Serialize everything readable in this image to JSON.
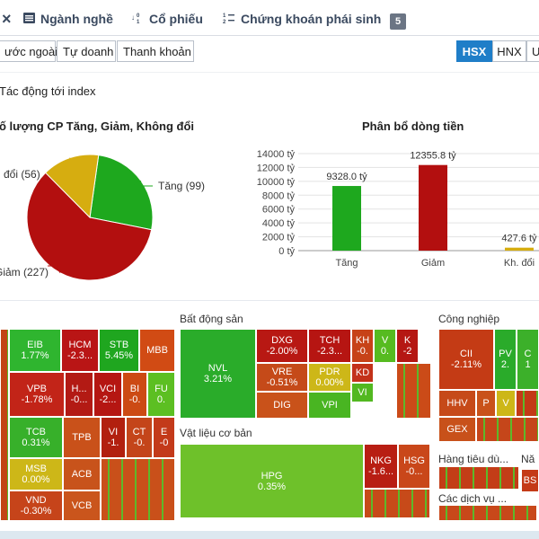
{
  "tabs": [
    {
      "label": "Ngành nghề",
      "icon": "list-icon"
    },
    {
      "label": "Cổ phiếu",
      "icon": "sort-numeric-icon"
    },
    {
      "label": "Chứng khoán phái sinh",
      "icon": "sort-numeric-icon"
    }
  ],
  "tab_close": "×",
  "tab_count": "5",
  "subtabs": [
    "ước ngoài",
    "Tự doanh",
    "Thanh khoản"
  ],
  "exchanges": [
    "HSX",
    "HNX",
    "U"
  ],
  "active_exchange": "HSX",
  "section": "Tác động tới index",
  "pie": {
    "title": "ố lượng CP Tăng, Giảm, Không đổi",
    "slices": [
      {
        "label": "Tăng (99)",
        "value": 99,
        "color": "#1ea81e"
      },
      {
        "label": "Giảm (227)",
        "value": 227,
        "color": "#b30f0f"
      },
      {
        "label": "đổi (56)",
        "value": 56,
        "color": "#d6ad10"
      }
    ]
  },
  "chart_data": {
    "type": "bar",
    "title": "Phân bổ dòng tiền",
    "categories": [
      "Tăng",
      "Giảm",
      "Kh. đổi"
    ],
    "values": [
      9328.0,
      12355.8,
      427.6
    ],
    "value_labels": [
      "9328.0 tỷ",
      "12355.8 tỷ",
      "427.6 tỷ"
    ],
    "colors": [
      "#1ea81e",
      "#b30f0f",
      "#d6ad10"
    ],
    "ylim": [
      0,
      14000
    ],
    "yticks": [
      "0 tỷ",
      "2000 tỷ",
      "4000 tỷ",
      "6000 tỷ",
      "8000 tỷ",
      "10000 tỷ",
      "12000 tỷ",
      "14000 tỷ"
    ],
    "grid": true
  },
  "treemap": {
    "groups": [
      "Bất động sản",
      "Công nghiệp",
      "Vật liệu cơ bản",
      "Hàng tiêu dù...",
      "Nă",
      "Các dịch vụ ..."
    ],
    "cells": [
      {
        "sym": "EIB",
        "val": "1.77%",
        "color": "#2fb52f"
      },
      {
        "sym": "HCM",
        "val": "-2.3...",
        "color": "#b91515"
      },
      {
        "sym": "STB",
        "val": "5.45%",
        "color": "#1fa61f"
      },
      {
        "sym": "MBB",
        "val": "",
        "color": "#d14b14"
      },
      {
        "sym": "VPB",
        "val": "-1.78%",
        "color": "#c22418"
      },
      {
        "sym": "H...",
        "val": "-0...",
        "color": "#b31a14"
      },
      {
        "sym": "VCI",
        "val": "-2...",
        "color": "#b51612"
      },
      {
        "sym": "BI",
        "val": "-0.",
        "color": "#cc4a14"
      },
      {
        "sym": "FU",
        "val": "0.",
        "color": "#5cbf22"
      },
      {
        "sym": "TCB",
        "val": "0.31%",
        "color": "#37b02a"
      },
      {
        "sym": "TPB",
        "val": "",
        "color": "#c9511a"
      },
      {
        "sym": "VI",
        "val": "-1.",
        "color": "#b2200f"
      },
      {
        "sym": "CT",
        "val": "-0.",
        "color": "#c4451a"
      },
      {
        "sym": "E",
        "val": "-0",
        "color": "#c33a1a"
      },
      {
        "sym": "MSB",
        "val": "0.00%",
        "color": "#cdb718"
      },
      {
        "sym": "ACB",
        "val": "",
        "color": "#c8531b"
      },
      {
        "sym": "VND",
        "val": "-0.30%",
        "color": "#c6441a"
      },
      {
        "sym": "VCB",
        "val": "",
        "color": "#ca551c"
      },
      {
        "sym": "NVL",
        "val": "3.21%",
        "color": "#2aac2a"
      },
      {
        "sym": "DXG",
        "val": "-2.00%",
        "color": "#b81813"
      },
      {
        "sym": "TCH",
        "val": "-2.3...",
        "color": "#b61512"
      },
      {
        "sym": "KH",
        "val": "-0.",
        "color": "#c74218"
      },
      {
        "sym": "V",
        "val": "0.",
        "color": "#56bb20"
      },
      {
        "sym": "K",
        "val": "-2",
        "color": "#b51713"
      },
      {
        "sym": "VRE",
        "val": "-0.51%",
        "color": "#c54a19"
      },
      {
        "sym": "PDR",
        "val": "0.00%",
        "color": "#cdb718"
      },
      {
        "sym": "KD",
        "val": "",
        "color": "#c3321a"
      },
      {
        "sym": "DIG",
        "val": "",
        "color": "#c9521a"
      },
      {
        "sym": "VPI",
        "val": "",
        "color": "#49b522"
      },
      {
        "sym": "VI",
        "val": "",
        "color": "#52b820"
      },
      {
        "sym": "HPG",
        "val": "0.35%",
        "color": "#6ec12a"
      },
      {
        "sym": "NKG",
        "val": "-1.6...",
        "color": "#b81e13"
      },
      {
        "sym": "HSG",
        "val": "-0...",
        "color": "#c9471a"
      },
      {
        "sym": "CII",
        "val": "-2.11%",
        "color": "#c43b15"
      },
      {
        "sym": "PV",
        "val": "2.",
        "color": "#2aab2a"
      },
      {
        "sym": "C",
        "val": "1",
        "color": "#3cb02a"
      },
      {
        "sym": "HHV",
        "val": "",
        "color": "#c64a19"
      },
      {
        "sym": "P",
        "val": "",
        "color": "#c9521a"
      },
      {
        "sym": "V",
        "val": "",
        "color": "#cdb718"
      },
      {
        "sym": "GEX",
        "val": "",
        "color": "#c8511a"
      },
      {
        "sym": "BS",
        "val": "",
        "color": "#c43a17"
      }
    ]
  }
}
